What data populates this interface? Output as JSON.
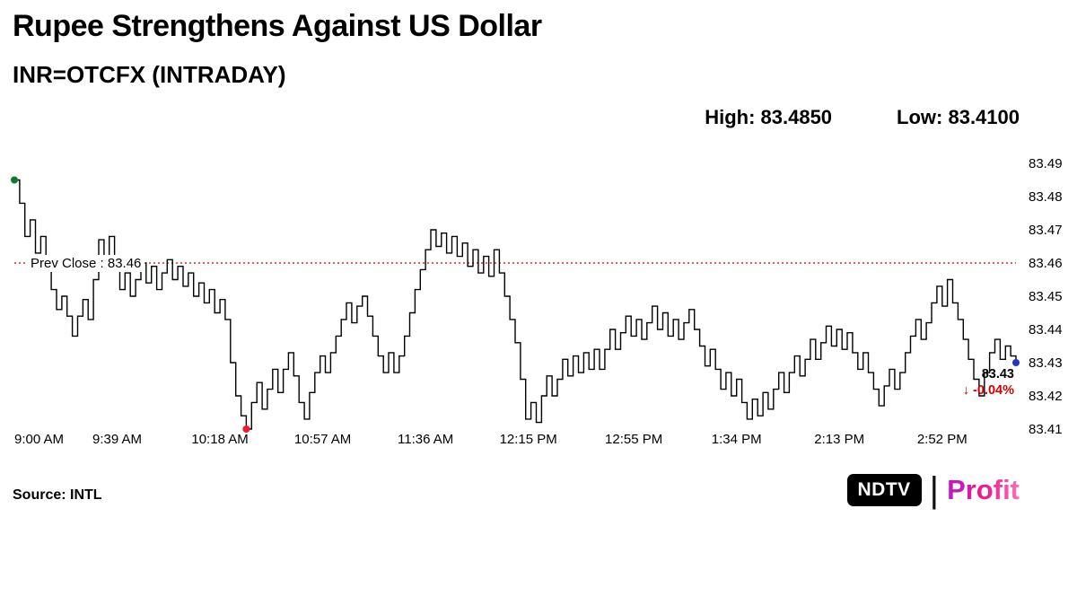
{
  "header": {
    "title": "Rupee Strengthens Against US Dollar",
    "subtitle": "INR=OTCFX (INTRADAY)",
    "high_label": "High: 83.4850",
    "low_label": "Low: 83.4100"
  },
  "footer": {
    "source": "Source: INTL",
    "brand_ndtv": "NDTV",
    "brand_separator": "|",
    "brand_profit": "Profit"
  },
  "chart_data": {
    "type": "line",
    "title": "INR=OTCFX (INTRADAY)",
    "session_high": 83.485,
    "session_low": 83.41,
    "prev_close": {
      "value": 83.46,
      "label": "Prev Close : 83.46"
    },
    "last": {
      "value": 83.43,
      "price_label": "83.43",
      "change_label": "↓ -0.04%",
      "change_pct": -0.04
    },
    "ylim": [
      83.41,
      83.49
    ],
    "y_ticks": [
      "83.49",
      "83.48",
      "83.47",
      "83.46",
      "83.45",
      "83.44",
      "83.43",
      "83.42",
      "83.41"
    ],
    "x_total_minutes": 380,
    "x_ticks": [
      {
        "minute": 0,
        "label": "9:00 AM"
      },
      {
        "minute": 39,
        "label": "9:39 AM"
      },
      {
        "minute": 78,
        "label": "10:18 AM"
      },
      {
        "minute": 117,
        "label": "10:57 AM"
      },
      {
        "minute": 156,
        "label": "11:36 AM"
      },
      {
        "minute": 195,
        "label": "12:15 PM"
      },
      {
        "minute": 235,
        "label": "12:55 PM"
      },
      {
        "minute": 274,
        "label": "1:34 PM"
      },
      {
        "minute": 313,
        "label": "2:13 PM"
      },
      {
        "minute": 352,
        "label": "2:52 PM"
      }
    ],
    "grid": false,
    "legend": false,
    "colors": {
      "line": "#000000",
      "prev_close": "#d40000",
      "change_text": "#d40000",
      "start_dot": "#0b7a2e",
      "low_dot": "#ee1c25",
      "last_dot": "#2036c9"
    },
    "series": [
      {
        "name": "INR=OTCFX intraday price",
        "start_minute": 0,
        "interval_minutes": 2,
        "values": [
          83.485,
          83.478,
          83.468,
          83.473,
          83.463,
          83.468,
          83.458,
          83.452,
          83.446,
          83.45,
          83.444,
          83.438,
          83.444,
          83.449,
          83.443,
          83.455,
          83.467,
          83.459,
          83.468,
          83.462,
          83.452,
          83.457,
          83.45,
          83.455,
          83.46,
          83.454,
          83.459,
          83.452,
          83.457,
          83.461,
          83.455,
          83.459,
          83.453,
          83.457,
          83.45,
          83.454,
          83.448,
          83.452,
          83.445,
          83.449,
          83.443,
          83.43,
          83.42,
          83.414,
          83.41,
          83.418,
          83.424,
          83.416,
          83.422,
          83.428,
          83.421,
          83.428,
          83.433,
          83.426,
          83.418,
          83.413,
          83.421,
          83.427,
          83.432,
          83.427,
          83.433,
          83.438,
          83.443,
          83.448,
          83.442,
          83.447,
          83.45,
          83.444,
          83.438,
          83.432,
          83.427,
          83.433,
          83.427,
          83.432,
          83.438,
          83.445,
          83.452,
          83.458,
          83.464,
          83.47,
          83.465,
          83.469,
          83.463,
          83.468,
          83.462,
          83.466,
          83.459,
          83.464,
          83.457,
          83.462,
          83.456,
          83.464,
          83.457,
          83.45,
          83.443,
          83.436,
          83.425,
          83.413,
          83.418,
          83.412,
          83.42,
          83.426,
          83.42,
          83.425,
          83.431,
          83.426,
          83.432,
          83.427,
          83.433,
          83.428,
          83.434,
          83.428,
          83.434,
          83.44,
          83.434,
          83.439,
          83.444,
          83.438,
          83.443,
          83.437,
          83.442,
          83.447,
          83.44,
          83.445,
          83.438,
          83.443,
          83.437,
          83.442,
          83.446,
          83.44,
          83.435,
          83.429,
          83.434,
          83.428,
          83.422,
          83.427,
          83.42,
          83.425,
          83.418,
          83.413,
          83.419,
          83.414,
          83.421,
          83.416,
          83.422,
          83.427,
          83.421,
          83.427,
          83.432,
          83.426,
          83.431,
          83.437,
          83.431,
          83.436,
          83.441,
          83.435,
          83.44,
          83.434,
          83.439,
          83.433,
          83.428,
          83.433,
          83.427,
          83.422,
          83.417,
          83.423,
          83.428,
          83.422,
          83.427,
          83.433,
          83.438,
          83.443,
          83.437,
          83.442,
          83.448,
          83.453,
          83.447,
          83.455,
          83.448,
          83.443,
          83.437,
          83.431,
          83.425,
          83.42,
          83.427,
          83.433,
          83.437,
          83.431,
          83.435,
          83.432,
          83.43
        ]
      }
    ]
  }
}
